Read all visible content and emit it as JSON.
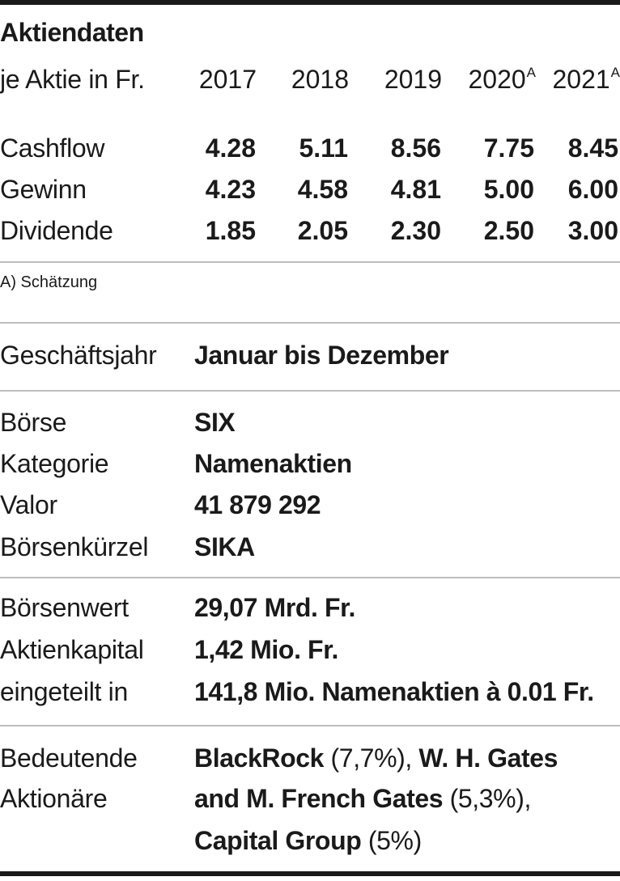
{
  "title": "Aktiendaten",
  "per_share_label": "je Aktie in Fr.",
  "years": [
    {
      "year": "2017",
      "note": ""
    },
    {
      "year": "2018",
      "note": ""
    },
    {
      "year": "2019",
      "note": ""
    },
    {
      "year": "2020",
      "note": "A"
    },
    {
      "year": "2021",
      "note": "A"
    }
  ],
  "rows": [
    {
      "label": "Cashflow",
      "values": [
        "4.28",
        "5.11",
        "8.56",
        "7.75",
        "8.45"
      ]
    },
    {
      "label": "Gewinn",
      "values": [
        "4.23",
        "4.58",
        "4.81",
        "5.00",
        "6.00"
      ]
    },
    {
      "label": "Dividende",
      "values": [
        "1.85",
        "2.05",
        "2.30",
        "2.50",
        "3.00"
      ]
    }
  ],
  "footnote": "A) Schätzung",
  "fiscal_year": {
    "label": "Geschäftsjahr",
    "value": "Januar bis Dezember"
  },
  "listing": [
    {
      "label": "Börse",
      "value": "SIX"
    },
    {
      "label": "Kategorie",
      "value": "Namenaktien"
    },
    {
      "label": "Valor",
      "value": "41 879 292"
    },
    {
      "label": "Börsenkürzel",
      "value": "SIKA"
    }
  ],
  "capital": [
    {
      "label": "Börsenwert",
      "value": "29,07 Mrd. Fr."
    },
    {
      "label": "Aktienkapital",
      "value": "1,42 Mio. Fr."
    },
    {
      "label": "eingeteilt in",
      "value": "141,8 Mio. Namenaktien à 0.01 Fr."
    }
  ],
  "shareholders": {
    "label_line1": "Bedeutende",
    "label_line2": "Aktionäre",
    "holder1_name": "BlackRock",
    "holder1_pct": " (7,7%),",
    "holder2_name_a": "W. H. Gates",
    "holder2_name_b": "and M. French Gates",
    "holder2_pct": " (5,3%),",
    "holder3_name": "Capital Group",
    "holder3_pct": " (5%)"
  }
}
